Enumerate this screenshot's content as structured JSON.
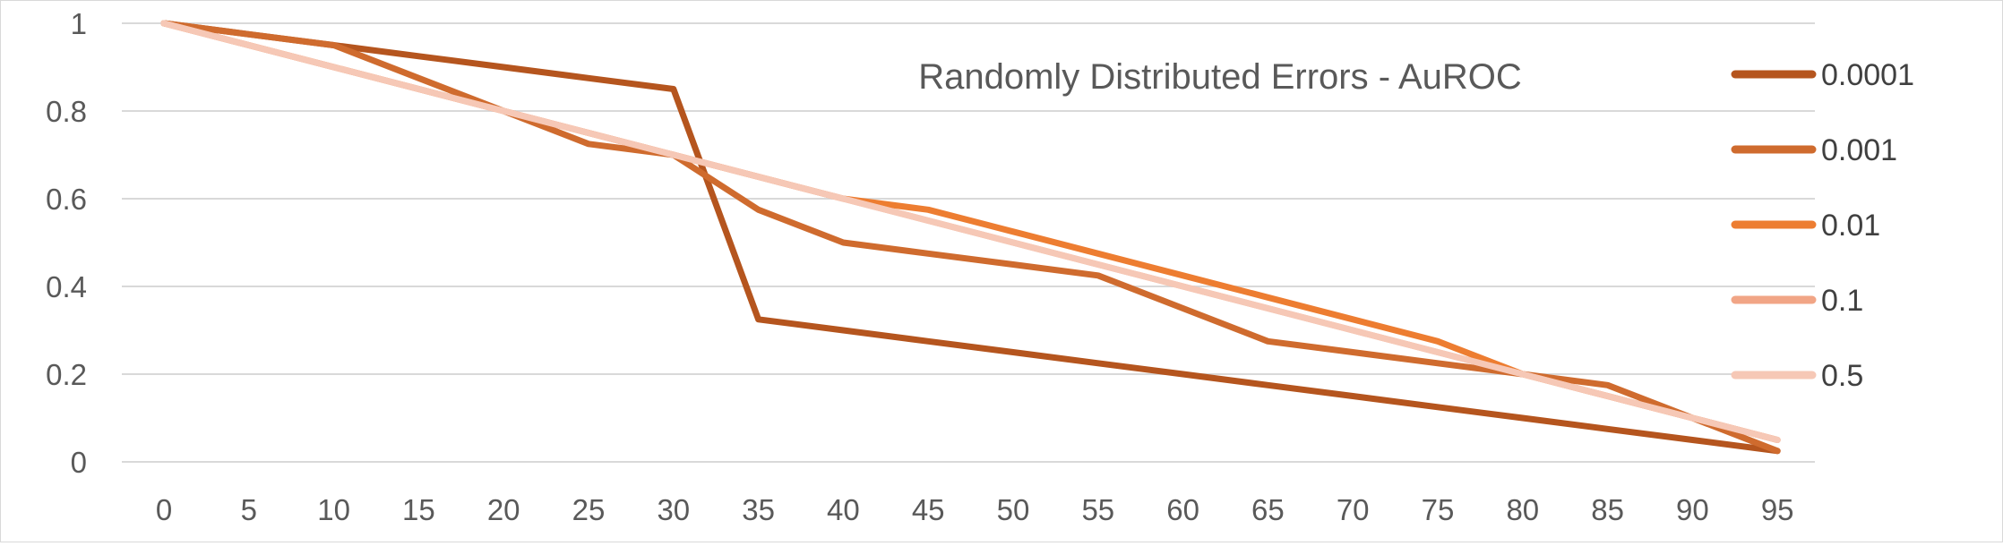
{
  "chart_data": {
    "type": "line",
    "title": "Randomly Distributed Errors - AuROC",
    "xlabel": "",
    "ylabel": "",
    "x": [
      0,
      5,
      10,
      15,
      20,
      25,
      30,
      35,
      40,
      45,
      50,
      55,
      60,
      65,
      70,
      75,
      80,
      85,
      90,
      95
    ],
    "x_tick_labels": [
      "0",
      "5",
      "10",
      "15",
      "20",
      "25",
      "30",
      "35",
      "40",
      "45",
      "50",
      "55",
      "60",
      "65",
      "70",
      "75",
      "80",
      "85",
      "90",
      "95"
    ],
    "y_tick_labels": [
      "0",
      "0.2",
      "0.4",
      "0.6",
      "0.8",
      "1"
    ],
    "ylim": [
      0,
      1
    ],
    "grid": "horizontal",
    "legend_position": "right",
    "series": [
      {
        "name": "0.0001",
        "color": "#B5551E",
        "values": [
          1.0,
          0.975,
          0.95,
          0.925,
          0.9,
          0.875,
          0.85,
          0.325,
          0.3,
          0.275,
          0.25,
          0.225,
          0.2,
          0.175,
          0.15,
          0.125,
          0.1,
          0.075,
          0.05,
          0.025
        ]
      },
      {
        "name": "0.001",
        "color": "#CF6B2E",
        "values": [
          1.0,
          0.975,
          0.95,
          0.875,
          0.8,
          0.725,
          0.7,
          0.575,
          0.5,
          0.475,
          0.45,
          0.425,
          0.35,
          0.275,
          0.25,
          0.225,
          0.2,
          0.175,
          0.1,
          0.025
        ]
      },
      {
        "name": "0.01",
        "color": "#ED7D31",
        "values": [
          1.0,
          0.95,
          0.9,
          0.85,
          0.8,
          0.75,
          0.7,
          0.65,
          0.6,
          0.575,
          0.525,
          0.475,
          0.425,
          0.375,
          0.325,
          0.275,
          0.2,
          0.15,
          0.1,
          0.05
        ]
      },
      {
        "name": "0.1",
        "color": "#F1A586",
        "values": [
          1.0,
          0.95,
          0.9,
          0.85,
          0.8,
          0.75,
          0.7,
          0.65,
          0.6,
          0.55,
          0.5,
          0.45,
          0.4,
          0.35,
          0.3,
          0.25,
          0.2,
          0.15,
          0.1,
          0.05
        ]
      },
      {
        "name": "0.5",
        "color": "#F6C8B6",
        "values": [
          1.0,
          0.95,
          0.9,
          0.85,
          0.8,
          0.75,
          0.7,
          0.65,
          0.6,
          0.55,
          0.5,
          0.45,
          0.4,
          0.35,
          0.3,
          0.25,
          0.2,
          0.15,
          0.1,
          0.05
        ]
      }
    ]
  }
}
